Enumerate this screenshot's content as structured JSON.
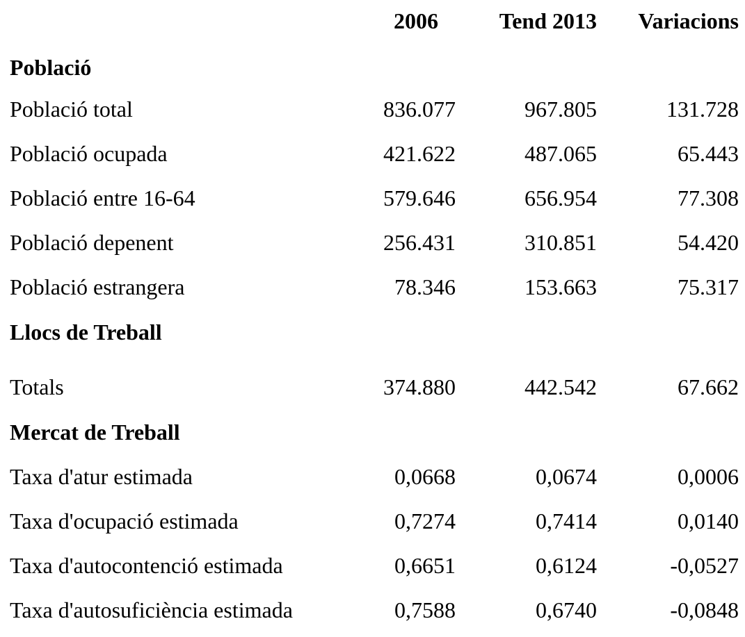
{
  "table": {
    "columns": [
      "2006",
      "Tend 2013",
      "Variacions"
    ],
    "sections": [
      {
        "title": "Població",
        "rows": [
          [
            "Població total",
            "836.077",
            "967.805",
            "131.728"
          ],
          [
            "Població ocupada",
            "421.622",
            "487.065",
            "65.443"
          ],
          [
            "Població entre 16-64",
            "579.646",
            "656.954",
            "77.308"
          ],
          [
            "Població depenent",
            "256.431",
            "310.851",
            "54.420"
          ],
          [
            "Població estrangera",
            "78.346",
            "153.663",
            "75.317"
          ]
        ]
      },
      {
        "title": "Llocs de Treball",
        "rows": [
          [
            "Totals",
            "374.880",
            "442.542",
            "67.662"
          ]
        ]
      },
      {
        "title": "Mercat de Treball",
        "rows": [
          [
            "Taxa d'atur estimada",
            "0,0668",
            "0,0674",
            "0,0006"
          ],
          [
            "Taxa d'ocupació estimada",
            "0,7274",
            "0,7414",
            "0,0140"
          ],
          [
            "Taxa d'autocontenció estimada",
            "0,6651",
            "0,6124",
            "-0,0527"
          ],
          [
            "Taxa d'autosuficiència estimada",
            "0,7588",
            "0,6740",
            "-0,0848"
          ]
        ]
      }
    ]
  }
}
